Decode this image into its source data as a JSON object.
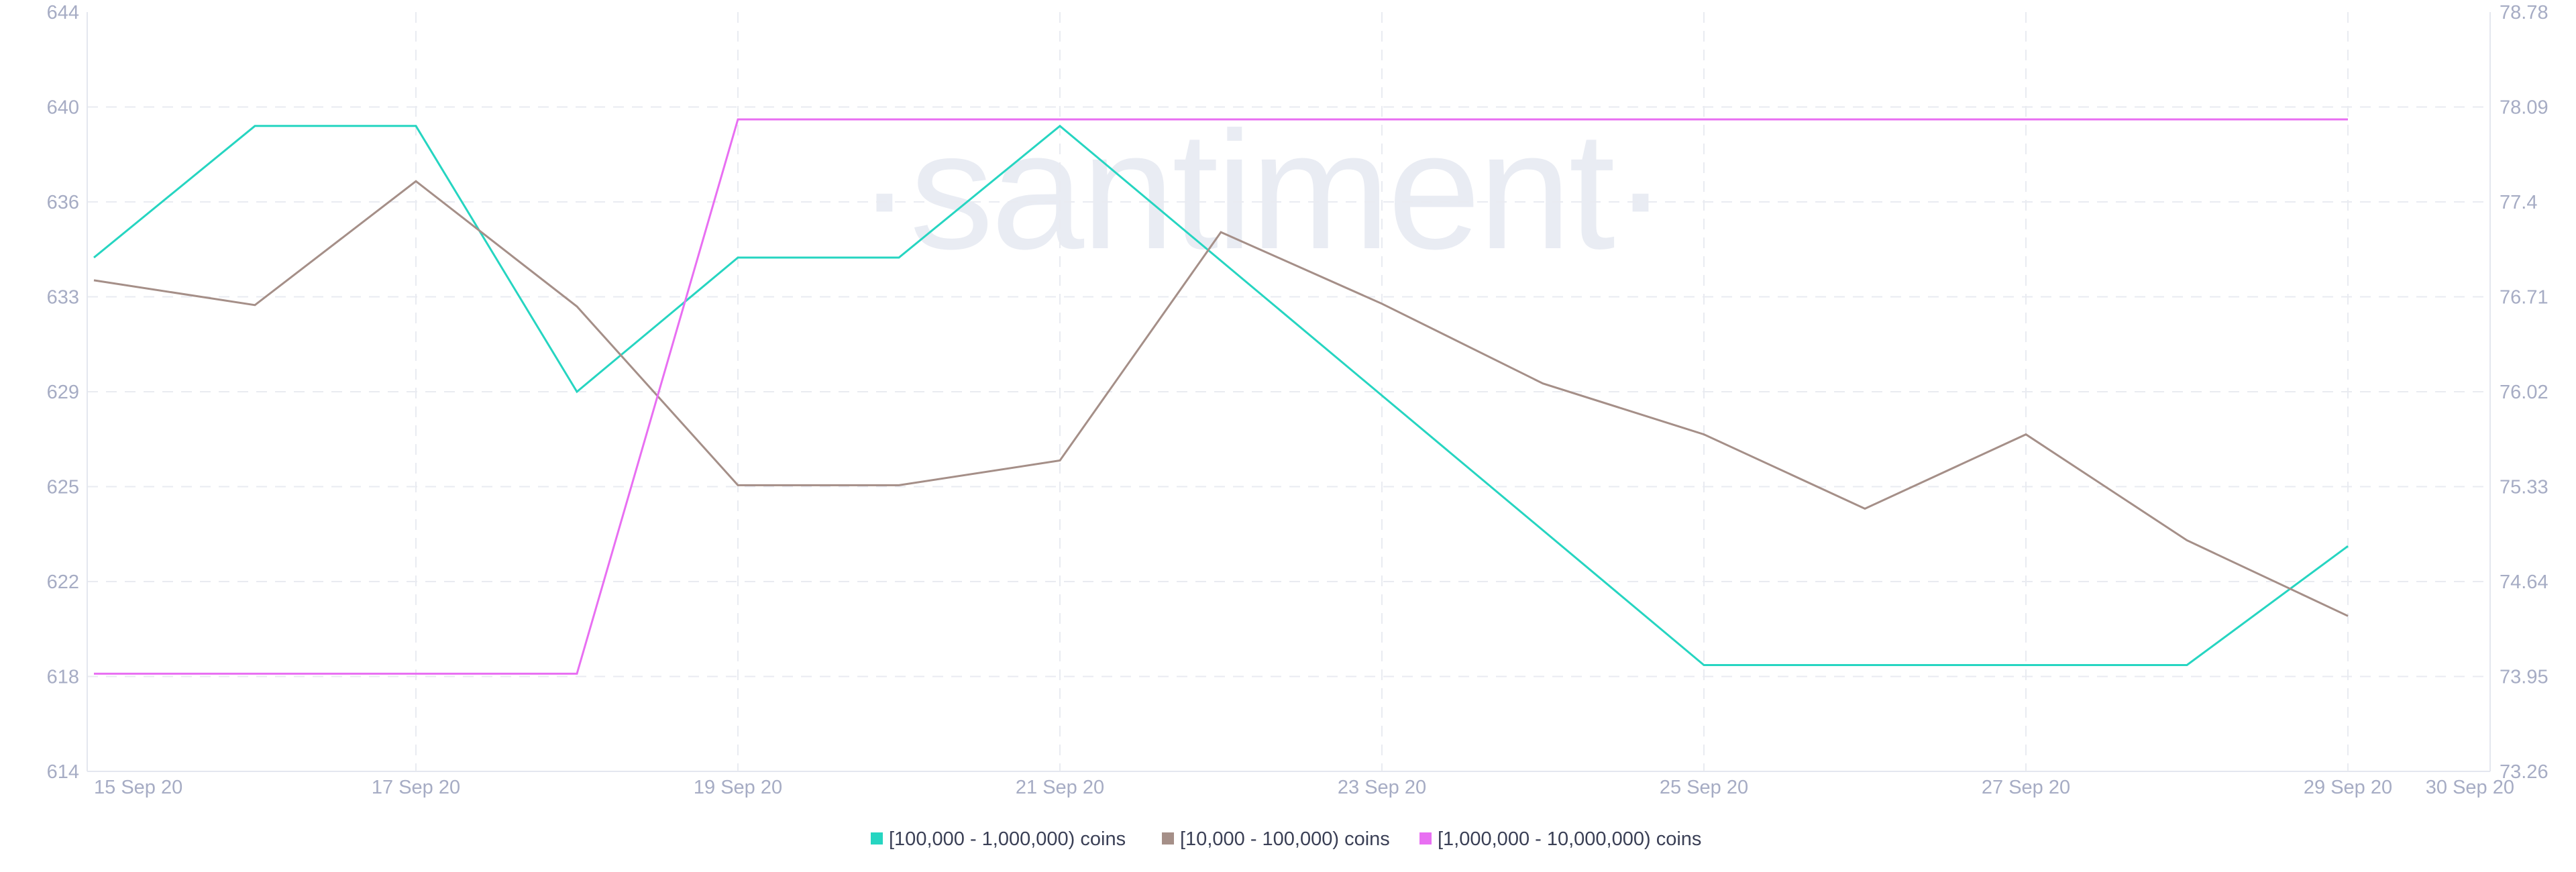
{
  "watermark": "·santiment·",
  "chart_data": {
    "type": "line",
    "x": [
      "15 Sep 20",
      "16 Sep 20",
      "17 Sep 20",
      "18 Sep 20",
      "19 Sep 20",
      "20 Sep 20",
      "21 Sep 20",
      "22 Sep 20",
      "23 Sep 20",
      "24 Sep 20",
      "25 Sep 20",
      "26 Sep 20",
      "27 Sep 20",
      "28 Sep 20",
      "29 Sep 20"
    ],
    "x_tick_labels": [
      "15 Sep 20",
      "17 Sep 20",
      "19 Sep 20",
      "21 Sep 20",
      "23 Sep 20",
      "25 Sep 20",
      "27 Sep 20",
      "29 Sep 20",
      "30 Sep 20"
    ],
    "left_axis": {
      "ylim": [
        614,
        644
      ],
      "ticks": [
        "644",
        "640",
        "636",
        "633",
        "629",
        "625",
        "622",
        "618",
        "614"
      ]
    },
    "right_axis": {
      "ylim": [
        73.26,
        78.78
      ],
      "ticks": [
        "78.78",
        "78.09",
        "77.4",
        "76.71",
        "76.02",
        "75.33",
        "74.64",
        "73.95",
        "73.26"
      ]
    },
    "grid": true,
    "legend_position": "bottom-center",
    "series": [
      {
        "name": "[100,000  - 1,000,000) coins",
        "color": "#26d5c1",
        "axis": "left",
        "values": [
          634.3,
          639.5,
          639.5,
          629.0,
          634.3,
          634.3,
          639.5,
          null,
          null,
          null,
          618.2,
          null,
          null,
          618.2,
          622.9
        ]
      },
      {
        "name": "[10,000 - 100,000) coins",
        "color": "#a58f88",
        "axis": "right",
        "values": [
          76.83,
          76.65,
          77.55,
          76.64,
          75.34,
          75.34,
          75.52,
          77.18,
          76.66,
          76.08,
          75.71,
          75.17,
          75.71,
          74.94,
          74.39
        ]
      },
      {
        "name": "[1,000,000 - 10,000,000) coins",
        "color": "#e86ff2",
        "axis": "right",
        "values": [
          73.97,
          73.97,
          73.97,
          73.97,
          78.0,
          78.0,
          78.0,
          78.0,
          78.0,
          78.0,
          78.0,
          78.0,
          78.0,
          78.0,
          78.0
        ]
      }
    ]
  }
}
